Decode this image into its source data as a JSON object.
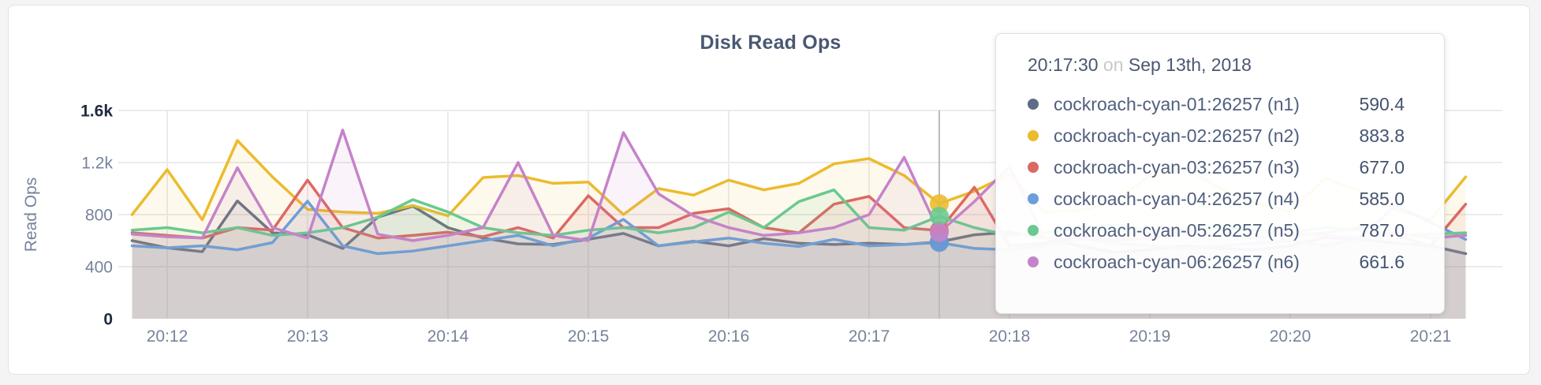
{
  "card": {
    "type": "metric-graph"
  },
  "tooltip": {
    "time": "20:17:30",
    "on": "on",
    "date": "Sep 13th, 2018",
    "hover_offset_sec": 330,
    "rows": [
      {
        "value": "590.4"
      },
      {
        "value": "883.8"
      },
      {
        "value": "677.0"
      },
      {
        "value": "585.0"
      },
      {
        "value": "787.0"
      },
      {
        "value": "661.6"
      }
    ]
  },
  "chart_data": {
    "type": "line",
    "title": "Disk Read Ops",
    "xlabel": "",
    "ylabel": "Read Ops",
    "grid": true,
    "legend_position": "tooltip",
    "ylim": [
      0,
      1600
    ],
    "y_ticks": [
      {
        "label": "0",
        "value": 0,
        "dark": true
      },
      {
        "label": "400",
        "value": 400,
        "dark": false
      },
      {
        "label": "800",
        "value": 800,
        "dark": false
      },
      {
        "label": "1.2k",
        "value": 1200,
        "dark": false
      },
      {
        "label": "1.6k",
        "value": 1600,
        "dark": true
      }
    ],
    "x_ticks": [
      "20:12",
      "20:13",
      "20:14",
      "20:15",
      "20:16",
      "20:17",
      "20:18",
      "20:19",
      "20:20",
      "20:21"
    ],
    "x_start_offset_sec": -15,
    "x_step_sec": 15,
    "series": [
      {
        "name": "cockroach-cyan-01:26257 (n1)",
        "color": "#5f6c87",
        "values": [
          600,
          545,
          515,
          905,
          660,
          645,
          540,
          780,
          865,
          700,
          620,
          575,
          570,
          610,
          655,
          560,
          595,
          560,
          615,
          580,
          570,
          580,
          570,
          590.4,
          645,
          665,
          620,
          560,
          510,
          530,
          560,
          540,
          530,
          560,
          625,
          610,
          580,
          560,
          500
        ]
      },
      {
        "name": "cockroach-cyan-02:26257 (n2)",
        "color": "#ecbb2d",
        "values": [
          800,
          1145,
          760,
          1370,
          1090,
          840,
          820,
          810,
          870,
          790,
          1085,
          1100,
          1040,
          1050,
          800,
          1000,
          950,
          1065,
          990,
          1040,
          1190,
          1230,
          1100,
          883.8,
          980,
          1110,
          820,
          830,
          900,
          1100,
          1160,
          1000,
          890,
          820,
          1080,
          980,
          840,
          760,
          1090
        ]
      },
      {
        "name": "cockroach-cyan-03:26257 (n3)",
        "color": "#db6963",
        "values": [
          660,
          640,
          620,
          700,
          680,
          1065,
          700,
          620,
          640,
          665,
          630,
          700,
          620,
          945,
          700,
          700,
          810,
          845,
          700,
          660,
          880,
          940,
          700,
          677,
          1010,
          560,
          580,
          640,
          600,
          620,
          660,
          700,
          680,
          640,
          660,
          700,
          640,
          560,
          880
        ]
      },
      {
        "name": "cockroach-cyan-04:26257 (n4)",
        "color": "#6b9edb",
        "values": [
          560,
          545,
          560,
          530,
          585,
          903,
          560,
          500,
          520,
          560,
          600,
          640,
          560,
          620,
          763,
          560,
          590,
          620,
          580,
          555,
          610,
          560,
          570,
          585,
          540,
          530,
          560,
          620,
          580,
          560,
          540,
          560,
          580,
          600,
          560,
          620,
          870,
          740,
          610
        ]
      },
      {
        "name": "cockroach-cyan-05:26257 (n5)",
        "color": "#69c98f",
        "values": [
          680,
          700,
          660,
          700,
          640,
          660,
          700,
          780,
          915,
          820,
          700,
          660,
          640,
          680,
          700,
          660,
          700,
          820,
          700,
          900,
          990,
          700,
          680,
          787,
          700,
          640,
          660,
          700,
          720,
          680,
          660,
          700,
          680,
          660,
          700,
          680,
          640,
          650,
          660
        ]
      },
      {
        "name": "cockroach-cyan-06:26257 (n6)",
        "color": "#c583c9",
        "values": [
          650,
          630,
          620,
          1160,
          700,
          620,
          1450,
          650,
          600,
          640,
          700,
          1200,
          640,
          600,
          1430,
          960,
          790,
          700,
          640,
          660,
          700,
          800,
          1240,
          661.6,
          900,
          1170,
          620,
          610,
          640,
          660,
          680,
          640,
          620,
          660,
          640,
          620,
          660,
          620,
          640
        ]
      }
    ]
  }
}
